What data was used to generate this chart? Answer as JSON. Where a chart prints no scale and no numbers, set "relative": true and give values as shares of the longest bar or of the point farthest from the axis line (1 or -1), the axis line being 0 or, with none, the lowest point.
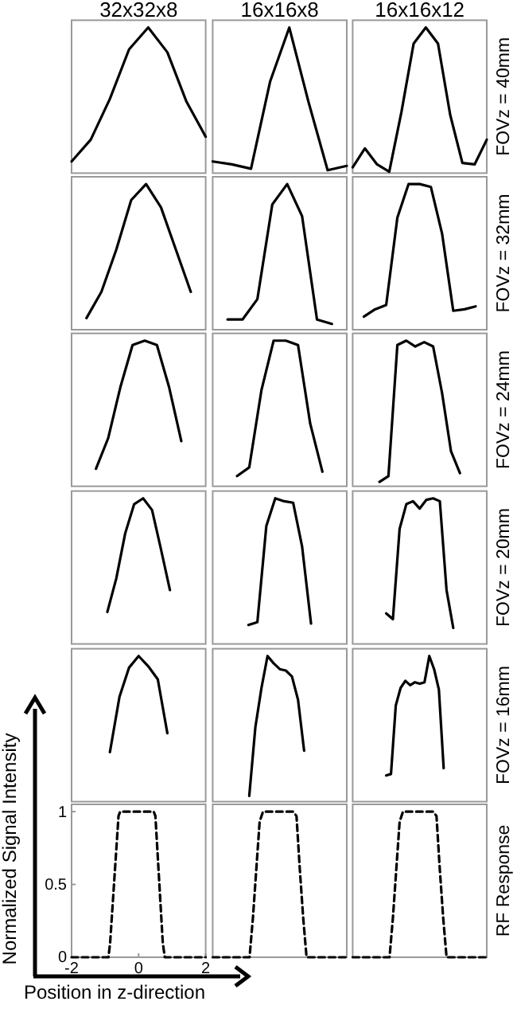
{
  "chart_data": [
    {
      "type": "line",
      "title": "32x32x8",
      "relative": true,
      "categories": [
        null,
        null,
        null,
        null,
        null,
        null,
        null,
        null
      ],
      "series": [
        {
          "color": "#000000",
          "values": [
            0.08,
            0.23,
            0.51,
            0.85,
            1.0,
            0.83,
            0.49,
            0.25
          ]
        }
      ]
    },
    {
      "type": "line",
      "title": "16x16x8",
      "relative": true,
      "categories": [
        null,
        null,
        null,
        null,
        null,
        null,
        null,
        null
      ],
      "series": [
        {
          "color": "#000000",
          "values": [
            0.08,
            0.06,
            0.03,
            0.63,
            1.0,
            0.49,
            0.02,
            0.05
          ]
        }
      ]
    },
    {
      "type": "line",
      "title": "16x16x12",
      "relative": true,
      "annotations": [
        "FOVz = 40mm"
      ],
      "categories": [
        null,
        null,
        null,
        null,
        null,
        null,
        null,
        null,
        null,
        null,
        null,
        null
      ],
      "series": [
        {
          "color": "#000000",
          "values": [
            0.04,
            0.17,
            0.06,
            0.01,
            0.42,
            0.89,
            1.0,
            0.89,
            0.4,
            0.07,
            0.06,
            0.23
          ]
        }
      ]
    },
    {
      "type": "line",
      "relative": true,
      "categories": [
        null,
        null,
        null,
        null,
        null,
        null,
        null,
        null,
        null,
        null
      ],
      "series": [
        {
          "color": "#000000",
          "values": [
            null,
            0.08,
            0.26,
            0.55,
            0.89,
            1.0,
            0.84,
            0.55,
            0.26,
            null
          ]
        }
      ]
    },
    {
      "type": "line",
      "relative": true,
      "categories": [
        null,
        null,
        null,
        null,
        null,
        null,
        null,
        null,
        null,
        null
      ],
      "series": [
        {
          "color": "#000000",
          "values": [
            null,
            0.07,
            0.07,
            0.21,
            0.86,
            1.0,
            0.78,
            0.07,
            0.04,
            null
          ]
        }
      ]
    },
    {
      "type": "line",
      "relative": true,
      "annotations": [
        "FOVz = 32mm"
      ],
      "categories": [
        null,
        null,
        null,
        null,
        null,
        null,
        null,
        null,
        null,
        null,
        null,
        null,
        null
      ],
      "series": [
        {
          "color": "#000000",
          "values": [
            null,
            0.09,
            0.14,
            0.17,
            0.77,
            1.0,
            1.0,
            0.98,
            0.66,
            0.13,
            0.14,
            0.16,
            null
          ]
        }
      ]
    },
    {
      "type": "line",
      "relative": true,
      "categories": [
        null,
        null,
        null,
        null,
        null,
        null,
        null,
        null,
        null,
        null,
        null,
        null
      ],
      "series": [
        {
          "color": "#000000",
          "values": [
            null,
            null,
            0.12,
            0.33,
            0.68,
            0.97,
            1.0,
            0.97,
            0.68,
            0.31,
            null,
            null
          ]
        }
      ]
    },
    {
      "type": "line",
      "relative": true,
      "categories": [
        null,
        null,
        null,
        null,
        null,
        null,
        null,
        null,
        null,
        null,
        null,
        null
      ],
      "series": [
        {
          "color": "#000000",
          "values": [
            null,
            null,
            0.07,
            0.13,
            0.66,
            1.0,
            1.0,
            0.97,
            0.43,
            0.1,
            null,
            null
          ]
        }
      ]
    },
    {
      "type": "line",
      "relative": true,
      "annotations": [
        "FOVz = 24mm"
      ],
      "categories": [
        null,
        null,
        null,
        null,
        null,
        null,
        null,
        null,
        null,
        null,
        null,
        null,
        null,
        null,
        null,
        null
      ],
      "series": [
        {
          "color": "#000000",
          "values": [
            null,
            null,
            null,
            0.03,
            0.07,
            0.97,
            1.0,
            0.96,
            0.99,
            0.96,
            0.64,
            0.24,
            0.09,
            null,
            null,
            null
          ]
        }
      ]
    },
    {
      "type": "line",
      "relative": true,
      "categories": [
        null,
        null,
        null,
        null,
        null,
        null,
        null,
        null,
        null,
        null,
        null,
        null,
        null,
        null,
        null,
        null
      ],
      "series": [
        {
          "color": "#000000",
          "values": [
            null,
            null,
            null,
            null,
            0.22,
            0.45,
            0.76,
            0.96,
            1.0,
            0.92,
            0.65,
            0.37,
            null,
            null,
            null,
            null
          ]
        }
      ]
    },
    {
      "type": "line",
      "relative": true,
      "categories": [
        null,
        null,
        null,
        null,
        null,
        null,
        null,
        null,
        null,
        null,
        null,
        null,
        null,
        null,
        null,
        null
      ],
      "series": [
        {
          "color": "#000000",
          "values": [
            null,
            null,
            null,
            null,
            0.13,
            0.15,
            0.81,
            1.0,
            0.98,
            0.97,
            0.67,
            0.14,
            null,
            null,
            null,
            null
          ]
        }
      ]
    },
    {
      "type": "line",
      "relative": true,
      "annotations": [
        "FOVz = 20mm"
      ],
      "categories": [
        null,
        null,
        null,
        null,
        null,
        null,
        null,
        null,
        null,
        null,
        null,
        null,
        null,
        null,
        null,
        null,
        null,
        null,
        null,
        null,
        null
      ],
      "series": [
        {
          "color": "#000000",
          "values": [
            null,
            null,
            null,
            null,
            null,
            0.21,
            0.17,
            0.79,
            0.96,
            0.98,
            0.93,
            0.99,
            1.0,
            0.98,
            0.37,
            0.11,
            null,
            null,
            null,
            null,
            null
          ]
        }
      ]
    },
    {
      "type": "line",
      "relative": true,
      "categories": [
        null,
        null,
        null,
        null,
        null,
        null,
        null,
        null,
        null,
        null,
        null,
        null,
        null,
        null,
        null
      ],
      "series": [
        {
          "color": "#000000",
          "values": [
            null,
            null,
            null,
            null,
            0.34,
            0.72,
            0.92,
            1.0,
            0.93,
            0.84,
            0.47,
            null,
            null,
            null,
            null
          ]
        }
      ]
    },
    {
      "type": "line",
      "relative": true,
      "categories": [
        null,
        null,
        null,
        null,
        null,
        null,
        null,
        null,
        null,
        null,
        null,
        null,
        null,
        null,
        null,
        null,
        null,
        null,
        null,
        null,
        null,
        null,
        null
      ],
      "series": [
        {
          "color": "#000000",
          "values": [
            null,
            null,
            null,
            null,
            null,
            null,
            0.04,
            0.51,
            0.78,
            1.0,
            0.95,
            0.91,
            0.9,
            0.86,
            0.7,
            0.35,
            null,
            null,
            null,
            null,
            null,
            null,
            null
          ]
        }
      ]
    },
    {
      "type": "line",
      "relative": true,
      "annotations": [
        "FOVz = 16mm"
      ],
      "categories": [
        null,
        null,
        null,
        null,
        null,
        null,
        null,
        null,
        null,
        null,
        null,
        null,
        null,
        null,
        null,
        null,
        null,
        null,
        null,
        null,
        null,
        null,
        null,
        null,
        null,
        null,
        null,
        null,
        null
      ],
      "series": [
        {
          "color": "#000000",
          "values": [
            null,
            null,
            null,
            null,
            null,
            null,
            null,
            0.18,
            0.19,
            0.66,
            0.78,
            0.83,
            0.8,
            0.82,
            0.81,
            0.82,
            1.0,
            0.91,
            0.77,
            0.23,
            null,
            null,
            null,
            null,
            null,
            null,
            null,
            null,
            null
          ]
        }
      ]
    },
    {
      "type": "line",
      "xlabel": "Position in z-direction",
      "ylabel": "Normalized Signal Intensity",
      "xlim": [
        -2,
        2
      ],
      "ylim": [
        0,
        1.05
      ],
      "xticks": [
        -2,
        0,
        2
      ],
      "yticks": [
        0,
        0.5,
        1
      ],
      "line_style": "dashed",
      "series": [
        {
          "color": "#000000",
          "x": [
            -2,
            -0.9,
            -0.85,
            -0.6,
            -0.55,
            0.45,
            0.5,
            0.72,
            0.78,
            2
          ],
          "values": [
            0,
            0,
            0.1,
            0.97,
            1,
            1,
            0.97,
            0.1,
            0,
            0
          ]
        }
      ]
    },
    {
      "type": "line",
      "relative": true,
      "line_style": "dashed",
      "categories": [
        null,
        null,
        null,
        null,
        null,
        null,
        null,
        null,
        null,
        null,
        null,
        null,
        null,
        null,
        null,
        null,
        null,
        null,
        null,
        null,
        null,
        null,
        null,
        null,
        null,
        null,
        null,
        null,
        null,
        null,
        null,
        null,
        null,
        null,
        null,
        null,
        null,
        null,
        null,
        null,
        null
      ],
      "series": [
        {
          "color": "#000000",
          "values": [
            0,
            0,
            0,
            0,
            0,
            0,
            0,
            0,
            0,
            0,
            0,
            0,
            0.27,
            0.6,
            0.93,
            1,
            1,
            1,
            1,
            1,
            1,
            1,
            1,
            1,
            1,
            0.97,
            0.6,
            0.27,
            0,
            0,
            0,
            0,
            0,
            0,
            0,
            0,
            0,
            0,
            0,
            0,
            0
          ]
        }
      ]
    },
    {
      "type": "line",
      "relative": true,
      "line_style": "dashed",
      "annotations": [
        "RF Response"
      ],
      "categories": [
        null,
        null,
        null,
        null,
        null,
        null,
        null,
        null,
        null,
        null,
        null,
        null,
        null,
        null,
        null,
        null,
        null,
        null,
        null,
        null,
        null,
        null,
        null,
        null,
        null,
        null,
        null,
        null,
        null,
        null,
        null,
        null,
        null,
        null,
        null,
        null,
        null,
        null,
        null,
        null,
        null
      ],
      "series": [
        {
          "color": "#000000",
          "values": [
            0,
            0,
            0,
            0,
            0,
            0,
            0,
            0,
            0,
            0,
            0,
            0,
            0.27,
            0.6,
            0.93,
            1,
            1,
            1,
            1,
            1,
            1,
            1,
            1,
            1,
            1,
            0.97,
            0.6,
            0.27,
            0,
            0,
            0,
            0,
            0,
            0,
            0,
            0,
            0,
            0,
            0,
            0,
            0
          ]
        }
      ]
    }
  ]
}
